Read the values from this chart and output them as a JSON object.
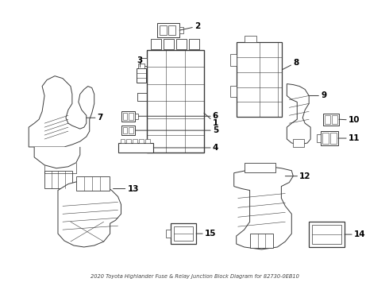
{
  "title": "2020 Toyota Highlander Fuse & Relay Junction Block Diagram for 82730-0EB10",
  "background_color": "#ffffff",
  "line_color": "#3a3a3a",
  "label_color": "#000000",
  "figsize": [
    4.9,
    3.6
  ],
  "dpi": 100
}
